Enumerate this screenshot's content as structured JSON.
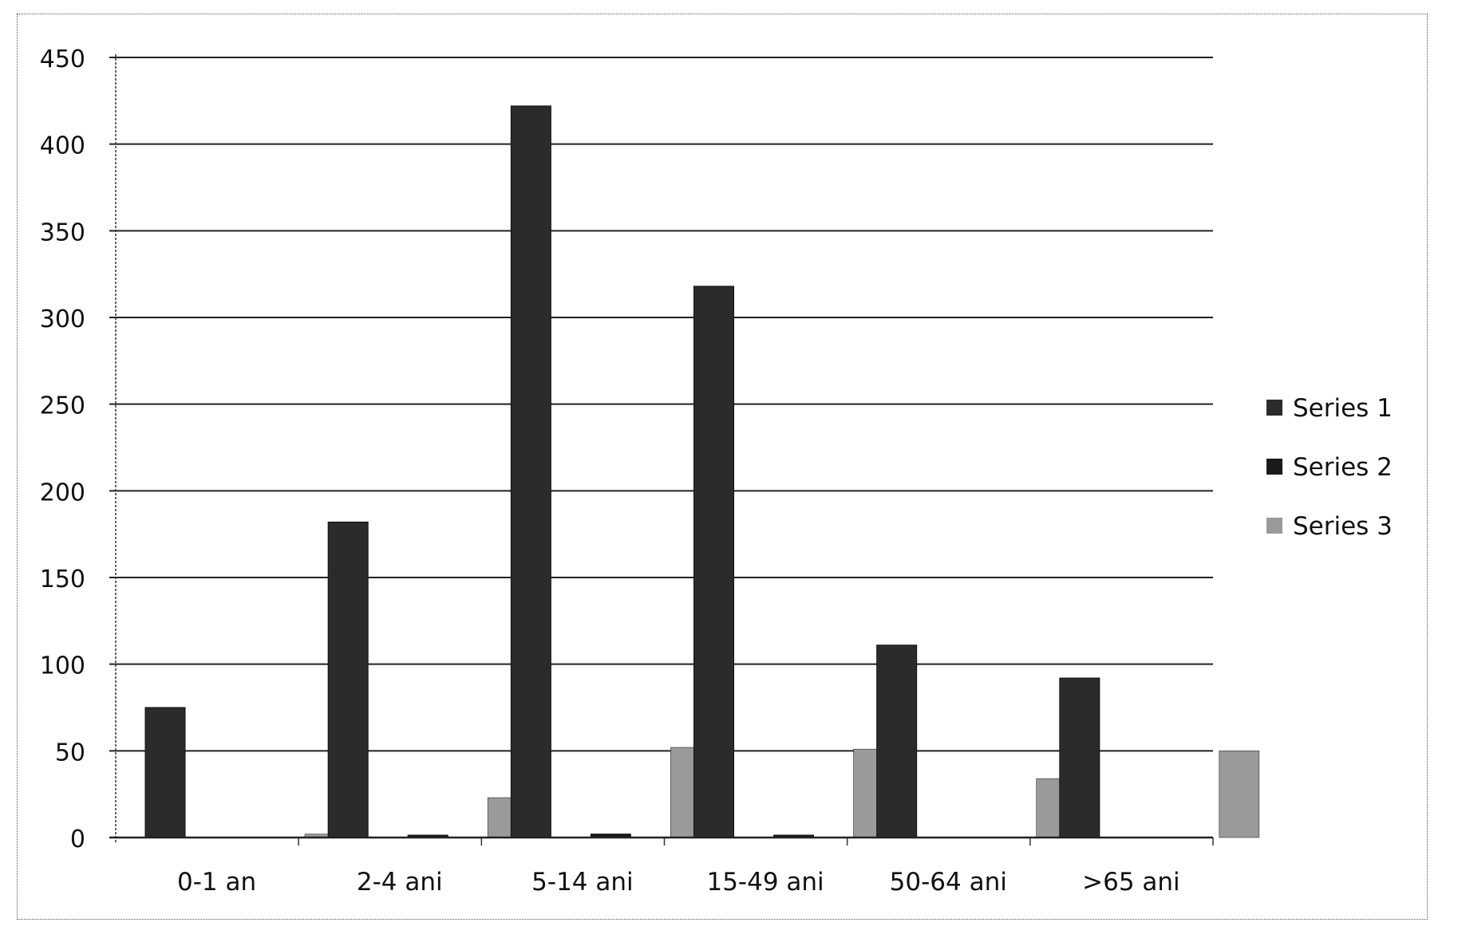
{
  "chart_data": {
    "type": "bar",
    "title": "",
    "xlabel": "",
    "ylabel": "",
    "categories": [
      "0-1 an",
      "2-4 ani",
      "5-14 ani",
      "15-49 ani",
      "50-64 ani",
      ">65 ani"
    ],
    "series": [
      {
        "name": "Series 1",
        "values": [
          75,
          182,
          422,
          318,
          111,
          92
        ],
        "color": "#2b2b2b"
      },
      {
        "name": "Series 2",
        "values": [
          0,
          1,
          2,
          1,
          0,
          0
        ],
        "color": "#1a1a1a"
      },
      {
        "name": "Series 3",
        "values": [
          2,
          23,
          52,
          51,
          34,
          50
        ],
        "color": "#9a9a9a"
      }
    ],
    "ylim": [
      0,
      450
    ],
    "yticks": [
      0,
      50,
      100,
      150,
      200,
      250,
      300,
      350,
      400,
      450
    ],
    "grid": true,
    "legend_position": "right"
  }
}
